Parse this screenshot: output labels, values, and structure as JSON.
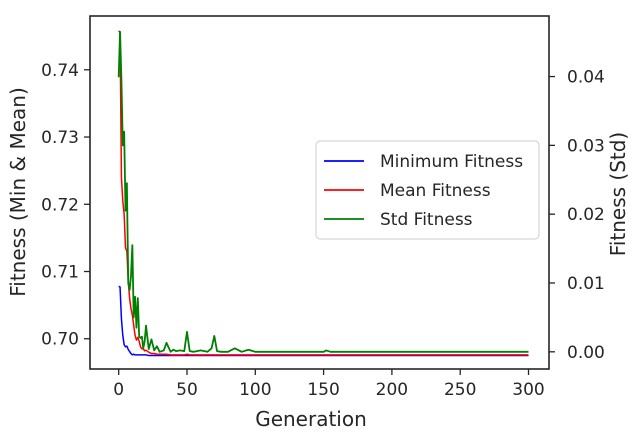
{
  "chart_data": {
    "type": "line",
    "x": [
      0,
      1,
      2,
      3,
      4,
      5,
      6,
      7,
      8,
      9,
      10,
      11,
      12,
      13,
      14,
      15,
      16,
      17,
      18,
      19,
      20,
      22,
      24,
      26,
      28,
      30,
      33,
      35,
      38,
      40,
      42,
      45,
      48,
      50,
      52,
      55,
      60,
      65,
      68,
      70,
      72,
      75,
      80,
      85,
      90,
      95,
      100,
      110,
      120,
      130,
      140,
      150,
      152,
      155,
      160,
      170,
      180,
      190,
      200,
      220,
      240,
      260,
      280,
      300
    ],
    "series": [
      {
        "name": "Minimum Fitness",
        "axis": "left",
        "color": "#0000ff",
        "values": [
          0.7078,
          0.7077,
          0.703,
          0.7005,
          0.6991,
          0.6988,
          0.6989,
          0.6984,
          0.6981,
          0.6978,
          0.6976,
          0.6977,
          0.6976,
          0.6976,
          0.6976,
          0.6976,
          0.6976,
          0.6976,
          0.6976,
          0.6976,
          0.6976,
          0.6975,
          0.6975,
          0.6975,
          0.6975,
          0.6975,
          0.6975,
          0.6975,
          0.6975,
          0.6975,
          0.6975,
          0.6975,
          0.6975,
          0.6975,
          0.6975,
          0.6975,
          0.6975,
          0.6975,
          0.6975,
          0.6975,
          0.6975,
          0.6975,
          0.6975,
          0.6975,
          0.6975,
          0.6975,
          0.6975,
          0.6975,
          0.6975,
          0.6975,
          0.6975,
          0.6975,
          0.6975,
          0.6975,
          0.6975,
          0.6975,
          0.6975,
          0.6975,
          0.6975,
          0.6975,
          0.6975,
          0.6975,
          0.6975,
          0.6975
        ]
      },
      {
        "name": "Mean Fitness",
        "axis": "left",
        "color": "#ff0000",
        "values": [
          0.7458,
          0.7455,
          0.724,
          0.7205,
          0.7185,
          0.7135,
          0.713,
          0.7085,
          0.706,
          0.7045,
          0.7035,
          0.702,
          0.7005,
          0.6998,
          0.7002,
          0.6996,
          0.6988,
          0.6985,
          0.6985,
          0.6982,
          0.6983,
          0.698,
          0.6978,
          0.6978,
          0.6977,
          0.6977,
          0.6977,
          0.6977,
          0.6976,
          0.6976,
          0.6976,
          0.6976,
          0.6976,
          0.6977,
          0.6976,
          0.6976,
          0.6976,
          0.6976,
          0.6976,
          0.6976,
          0.6976,
          0.6976,
          0.6976,
          0.6976,
          0.6976,
          0.6976,
          0.6976,
          0.6976,
          0.6976,
          0.6976,
          0.6976,
          0.6976,
          0.6976,
          0.6976,
          0.6976,
          0.6976,
          0.6976,
          0.6976,
          0.6976,
          0.6976,
          0.6976,
          0.6976,
          0.6976,
          0.6976
        ]
      },
      {
        "name": "Std Fitness",
        "axis": "right",
        "color": "#008000",
        "values": [
          0.0399,
          0.0465,
          0.0395,
          0.03,
          0.032,
          0.0205,
          0.0245,
          0.01,
          0.009,
          0.011,
          0.0155,
          0.005,
          0.008,
          0.0035,
          0.0078,
          0.0022,
          0.002,
          0.0022,
          0.0005,
          0.0015,
          0.0038,
          0.0004,
          0.0018,
          0.0002,
          0.0008,
          0.0,
          0.0002,
          0.0013,
          0.0,
          0.0003,
          0.0001,
          0.0002,
          0.0001,
          0.0029,
          0.0001,
          0.0,
          0.0002,
          0.0,
          0.0005,
          0.0023,
          0.0001,
          0.0,
          0.0,
          0.0005,
          0.0,
          0.0003,
          0.0,
          0.0,
          0.0,
          0.0,
          0.0,
          0.0,
          0.0002,
          0.0,
          0.0,
          0.0,
          0.0,
          0.0,
          0.0,
          0.0,
          0.0,
          0.0,
          0.0,
          0.0
        ]
      }
    ],
    "xlabel": "Generation",
    "ylabel_left": "Fitness (Min & Mean)",
    "ylabel_right": "Fitness (Std)",
    "xlim": [
      -21,
      315
    ],
    "ylim_left": [
      0.6955,
      0.748
    ],
    "ylim_right": [
      -0.0025,
      0.0488
    ],
    "xticks": [
      0,
      50,
      100,
      150,
      200,
      250,
      300
    ],
    "yticks_left": [
      0.7,
      0.71,
      0.72,
      0.73,
      0.74
    ],
    "yticks_left_labels": [
      "0.70",
      "0.71",
      "0.72",
      "0.73",
      "0.74"
    ],
    "yticks_right": [
      0.0,
      0.01,
      0.02,
      0.03,
      0.04
    ],
    "yticks_right_labels": [
      "0.00",
      "0.01",
      "0.02",
      "0.03",
      "0.04"
    ],
    "legend": {
      "placement": "center-right",
      "entries": [
        "Minimum Fitness",
        "Mean Fitness",
        "Std Fitness"
      ]
    },
    "grid": false
  }
}
